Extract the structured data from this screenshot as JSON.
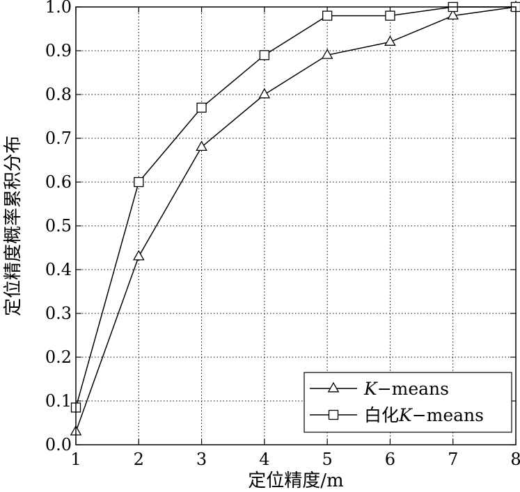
{
  "chart_data": {
    "type": "line",
    "xlabel": "定位精度/m",
    "ylabel": "定位精度概率累积分布",
    "xlim": [
      1,
      8
    ],
    "ylim": [
      0.0,
      1.0
    ],
    "x_ticks": [
      "1",
      "2",
      "3",
      "4",
      "5",
      "6",
      "7",
      "8"
    ],
    "y_ticks": [
      "0.0",
      "0.1",
      "0.2",
      "0.3",
      "0.4",
      "0.5",
      "0.6",
      "0.7",
      "0.8",
      "0.9",
      "1.0"
    ],
    "grid": true,
    "legend_position": "bottom-right",
    "x": [
      1,
      2,
      3,
      4,
      5,
      6,
      7,
      8
    ],
    "series": [
      {
        "name": "K−means",
        "name_prefix": "",
        "name_italic": "K",
        "name_suffix": "−means",
        "marker": "triangle",
        "color": "#000000",
        "values": [
          0.03,
          0.43,
          0.68,
          0.8,
          0.89,
          0.92,
          0.98,
          1.0
        ]
      },
      {
        "name": "白化K−means",
        "name_prefix": "白化",
        "name_italic": "K",
        "name_suffix": "−means",
        "marker": "square",
        "color": "#000000",
        "values": [
          0.085,
          0.6,
          0.77,
          0.89,
          0.98,
          0.98,
          1.0,
          1.0
        ]
      }
    ]
  }
}
